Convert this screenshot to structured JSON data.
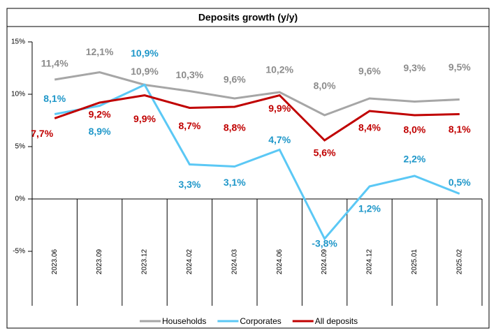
{
  "chart_data": {
    "type": "line",
    "title": "Deposits growth (y/y)",
    "categories": [
      "2023.06",
      "2023.09",
      "2023.12",
      "2024.02",
      "2024.03",
      "2024.06",
      "2024.09",
      "2024.12",
      "2025.01",
      "2025.02"
    ],
    "ylim": [
      -5,
      15
    ],
    "yticks": [
      {
        "value": -5,
        "label": "-5%"
      },
      {
        "value": 0,
        "label": "0%"
      },
      {
        "value": 5,
        "label": "5%"
      },
      {
        "value": 10,
        "label": "10%"
      },
      {
        "value": 15,
        "label": "15%"
      }
    ],
    "series": [
      {
        "name": "Households",
        "color": "#a6a6a6",
        "label_color": "#8c8c8c",
        "values": [
          11.4,
          12.1,
          10.9,
          10.3,
          9.6,
          10.2,
          8.0,
          9.6,
          9.3,
          9.5
        ],
        "value_labels": [
          "11,4%",
          "12,1%",
          "10,9%",
          "10,3%",
          "9,6%",
          "10,2%",
          "8,0%",
          "9,6%",
          "9,3%",
          "9,5%"
        ]
      },
      {
        "name": "Corporates",
        "color": "#5bc8f5",
        "label_color": "#1f97c9",
        "values": [
          8.1,
          8.9,
          10.9,
          3.3,
          3.1,
          4.7,
          -3.8,
          1.2,
          2.2,
          0.5
        ],
        "value_labels": [
          "8,1%",
          "8,9%",
          "10,9%",
          "3,3%",
          "3,1%",
          "4,7%",
          "-3,8%",
          "1,2%",
          "2,2%",
          "0,5%"
        ]
      },
      {
        "name": "All deposits",
        "color": "#c00000",
        "label_color": "#c00000",
        "values": [
          7.7,
          9.2,
          9.9,
          8.7,
          8.8,
          9.9,
          5.6,
          8.4,
          8.0,
          8.1
        ],
        "value_labels": [
          "7,7%",
          "9,2%",
          "9,9%",
          "8,7%",
          "8,8%",
          "9,9%",
          "5,6%",
          "8,4%",
          "8,0%",
          "8,1%"
        ]
      }
    ]
  }
}
